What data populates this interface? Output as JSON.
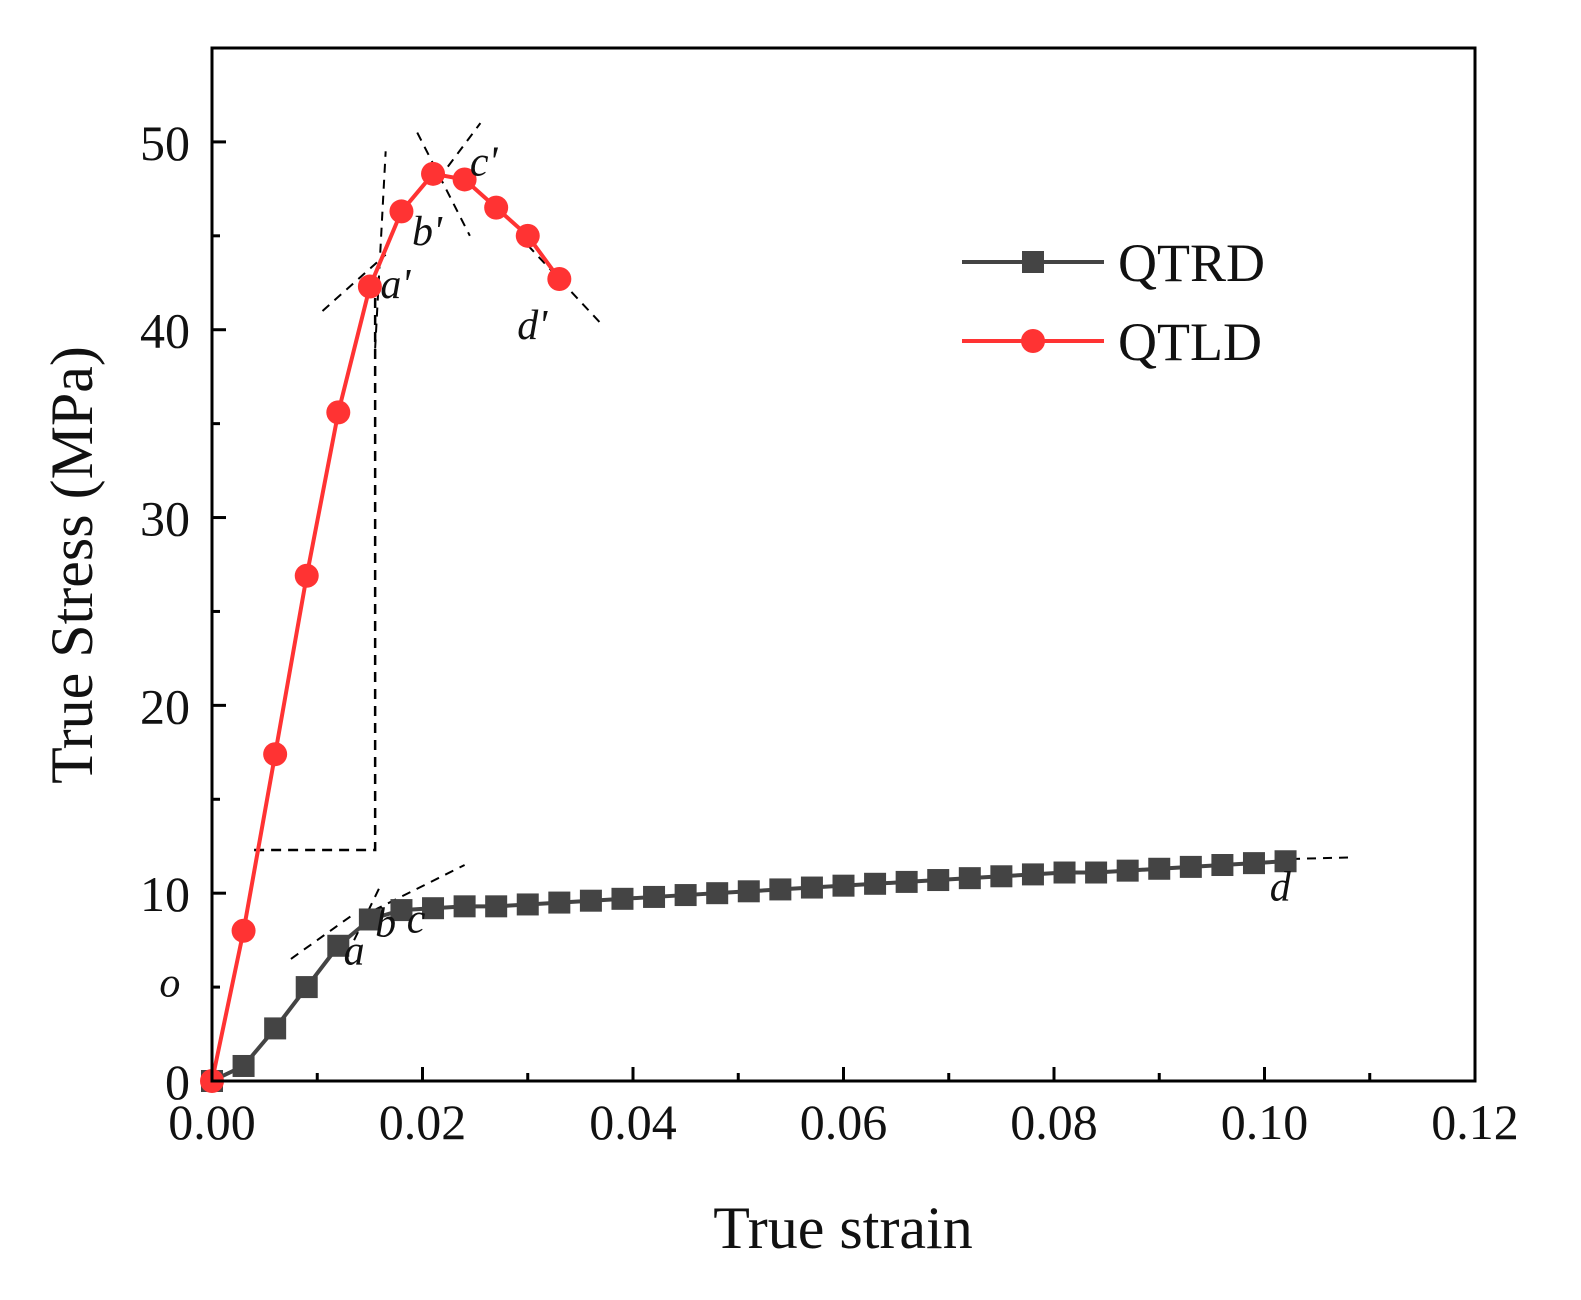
{
  "chart_data": {
    "type": "line",
    "xlabel": "True strain",
    "ylabel": "True Stress (MPa)",
    "xlim": [
      0,
      0.12
    ],
    "ylim": [
      0,
      55
    ],
    "xticks": [
      "0.00",
      "0.02",
      "0.04",
      "0.06",
      "0.08",
      "0.10",
      "0.12"
    ],
    "xtick_values": [
      0,
      0.02,
      0.04,
      0.06,
      0.08,
      0.1,
      0.12
    ],
    "yticks": [
      "0",
      "10",
      "20",
      "30",
      "40",
      "50"
    ],
    "ytick_values": [
      0,
      10,
      20,
      30,
      40,
      50
    ],
    "legend_position": "top-right",
    "series": [
      {
        "name": "QTRD",
        "color": "#444444",
        "marker": "square",
        "x": [
          0,
          0.003,
          0.006,
          0.009,
          0.012,
          0.015,
          0.018,
          0.021,
          0.024,
          0.027,
          0.03,
          0.033,
          0.036,
          0.039,
          0.042,
          0.045,
          0.048,
          0.051,
          0.054,
          0.057,
          0.06,
          0.063,
          0.066,
          0.069,
          0.072,
          0.075,
          0.078,
          0.081,
          0.084,
          0.087,
          0.09,
          0.093,
          0.096,
          0.099,
          0.102
        ],
        "y": [
          0,
          0.8,
          2.8,
          5.0,
          7.2,
          8.6,
          9.1,
          9.2,
          9.3,
          9.3,
          9.4,
          9.5,
          9.6,
          9.7,
          9.8,
          9.9,
          10.0,
          10.1,
          10.2,
          10.3,
          10.4,
          10.5,
          10.6,
          10.7,
          10.8,
          10.9,
          11.0,
          11.1,
          11.1,
          11.2,
          11.3,
          11.4,
          11.5,
          11.6,
          11.7
        ]
      },
      {
        "name": "QTLD",
        "color": "#ff3333",
        "marker": "circle",
        "x": [
          0,
          0.003,
          0.006,
          0.009,
          0.012,
          0.015,
          0.018,
          0.021,
          0.024,
          0.027,
          0.03,
          0.033
        ],
        "y": [
          0,
          8.0,
          17.4,
          26.9,
          35.6,
          42.3,
          46.3,
          48.3,
          48.0,
          46.5,
          45.0,
          42.7
        ]
      }
    ],
    "annotations": [
      {
        "label": "o",
        "x": -0.005,
        "y": 4.5
      },
      {
        "label": "a",
        "x": 0.0125,
        "y": 6.2
      },
      {
        "label": "b",
        "x": 0.0155,
        "y": 7.7
      },
      {
        "label": "c",
        "x": 0.0185,
        "y": 7.9
      },
      {
        "label": "d",
        "x": 0.1005,
        "y": 9.6
      },
      {
        "label": "a'",
        "x": 0.016,
        "y": 41.7
      },
      {
        "label": "b'",
        "x": 0.019,
        "y": 44.5
      },
      {
        "label": "c'",
        "x": 0.0245,
        "y": 48.2
      },
      {
        "label": "d'",
        "x": 0.029,
        "y": 39.5
      }
    ],
    "guide_lines": [
      {
        "x1": 0.0105,
        "y1": 41.0,
        "x2": 0.0165,
        "y2": 44.0
      },
      {
        "x1": 0.0155,
        "y1": 39.0,
        "x2": 0.0165,
        "y2": 49.5
      },
      {
        "x1": 0.0195,
        "y1": 50.5,
        "x2": 0.0245,
        "y2": 45.0
      },
      {
        "x1": 0.0215,
        "y1": 48.0,
        "x2": 0.0255,
        "y2": 51.0
      },
      {
        "x1": 0.03,
        "y1": 44.5,
        "x2": 0.037,
        "y2": 40.3
      },
      {
        "x1": 0.0075,
        "y1": 6.5,
        "x2": 0.0135,
        "y2": 8.9
      },
      {
        "x1": 0.0135,
        "y1": 7.5,
        "x2": 0.016,
        "y2": 10.4
      },
      {
        "x1": 0.014,
        "y1": 8.7,
        "x2": 0.024,
        "y2": 11.5
      },
      {
        "x1": 0.101,
        "y1": 11.8,
        "x2": 0.108,
        "y2": 11.9
      }
    ],
    "guide_box": {
      "x1": 0.004,
      "x2": 0.0155,
      "ybottom": 12.3,
      "ytop": 42.3
    }
  }
}
